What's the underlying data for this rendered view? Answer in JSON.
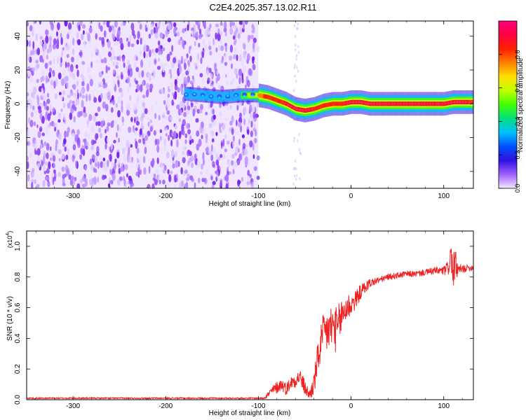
{
  "title": "C2E4.2025.357.13.02.R11",
  "colors": {
    "snr_line": "#ee2222",
    "background": "#ffffff",
    "axis": "#000000"
  },
  "chart_data": [
    {
      "type": "heatmap",
      "name": "spectrogram",
      "xlabel": "Height of straight line (km)",
      "ylabel": "Frequency (Hz)",
      "xlim": [
        -350,
        132
      ],
      "ylim": [
        -50,
        49
      ],
      "xticks": [
        -300,
        -200,
        -100,
        0,
        100
      ],
      "yticks": [
        -40,
        -20,
        0,
        20,
        40
      ],
      "noise_region_x": [
        -350,
        -100
      ],
      "signal_track": {
        "x": [
          -180,
          -160,
          -140,
          -120,
          -100,
          -90,
          -80,
          -70,
          -60,
          -50,
          -40,
          -30,
          -20,
          -10,
          0,
          10,
          20,
          40,
          60,
          80,
          100,
          110,
          120,
          132
        ],
        "freq_hz": [
          6,
          5,
          4,
          5,
          5,
          4,
          2,
          0,
          -3,
          -4,
          -3,
          -1,
          0,
          0,
          1,
          1,
          0,
          0,
          0,
          0,
          0,
          1,
          1,
          1
        ],
        "amplitude": [
          0.3,
          0.35,
          0.4,
          0.45,
          0.75,
          0.85,
          0.8,
          0.9,
          0.95,
          0.95,
          0.85,
          0.8,
          0.8,
          0.85,
          0.95,
          0.95,
          0.95,
          0.95,
          0.95,
          0.95,
          0.95,
          0.95,
          0.9,
          0.85
        ]
      },
      "colorbar": {
        "label": "Normalized spectral amplitude",
        "range": [
          0.0,
          1.0
        ],
        "ticks": [
          "0.0",
          "0.2",
          "0.4",
          "0.6",
          "0.8"
        ],
        "tick_values": [
          0.0,
          0.2,
          0.4,
          0.6,
          0.8
        ],
        "stops": [
          "#f4e8ff",
          "#a060ff",
          "#3010e0",
          "#0050ff",
          "#00c0ff",
          "#00e080",
          "#40ff00",
          "#c0ff00",
          "#ffe000",
          "#ff8000",
          "#ff2000",
          "#ff0040",
          "#ff0080"
        ]
      }
    },
    {
      "type": "line",
      "name": "snr",
      "xlabel": "Height of straight line (km)",
      "ylabel": "SNR (10 * v/v)",
      "exponent_label": "(x10",
      "exponent_power": "4",
      "exponent_close": ")",
      "xlim": [
        -350,
        132
      ],
      "ylim": [
        0,
        1.1
      ],
      "xticks": [
        -300,
        -200,
        -100,
        0,
        100
      ],
      "yticks": [
        0.0,
        0.2,
        0.4,
        0.6,
        0.8,
        1.0
      ],
      "ytick_labels": [
        "0.0",
        "0.2",
        "0.4",
        "0.6",
        "0.8",
        "1.0"
      ],
      "series": [
        {
          "name": "SNR",
          "x": [
            -350,
            -300,
            -200,
            -100,
            -95,
            -90,
            -85,
            -80,
            -75,
            -70,
            -65,
            -60,
            -55,
            -50,
            -45,
            -40,
            -35,
            -30,
            -25,
            -20,
            -15,
            -10,
            -5,
            0,
            5,
            10,
            15,
            20,
            30,
            40,
            50,
            60,
            70,
            80,
            90,
            100,
            105,
            108,
            110,
            112,
            115,
            120,
            125,
            132
          ],
          "y": [
            0.01,
            0.01,
            0.01,
            0.01,
            0.01,
            0.03,
            0.06,
            0.08,
            0.1,
            0.07,
            0.11,
            0.13,
            0.15,
            0.08,
            0.03,
            0.1,
            0.3,
            0.42,
            0.45,
            0.48,
            0.45,
            0.55,
            0.6,
            0.62,
            0.65,
            0.7,
            0.73,
            0.76,
            0.78,
            0.8,
            0.81,
            0.82,
            0.82,
            0.83,
            0.84,
            0.84,
            0.86,
            0.95,
            0.8,
            0.9,
            0.84,
            0.85,
            0.86,
            0.86
          ],
          "jitter": [
            0.005,
            0.005,
            0.005,
            0.005,
            0.006,
            0.02,
            0.03,
            0.04,
            0.04,
            0.04,
            0.04,
            0.05,
            0.05,
            0.05,
            0.03,
            0.08,
            0.12,
            0.14,
            0.15,
            0.15,
            0.15,
            0.12,
            0.1,
            0.08,
            0.06,
            0.05,
            0.04,
            0.03,
            0.02,
            0.02,
            0.02,
            0.02,
            0.02,
            0.02,
            0.025,
            0.03,
            0.05,
            0.1,
            0.12,
            0.1,
            0.05,
            0.03,
            0.02,
            0.02
          ]
        }
      ]
    }
  ]
}
